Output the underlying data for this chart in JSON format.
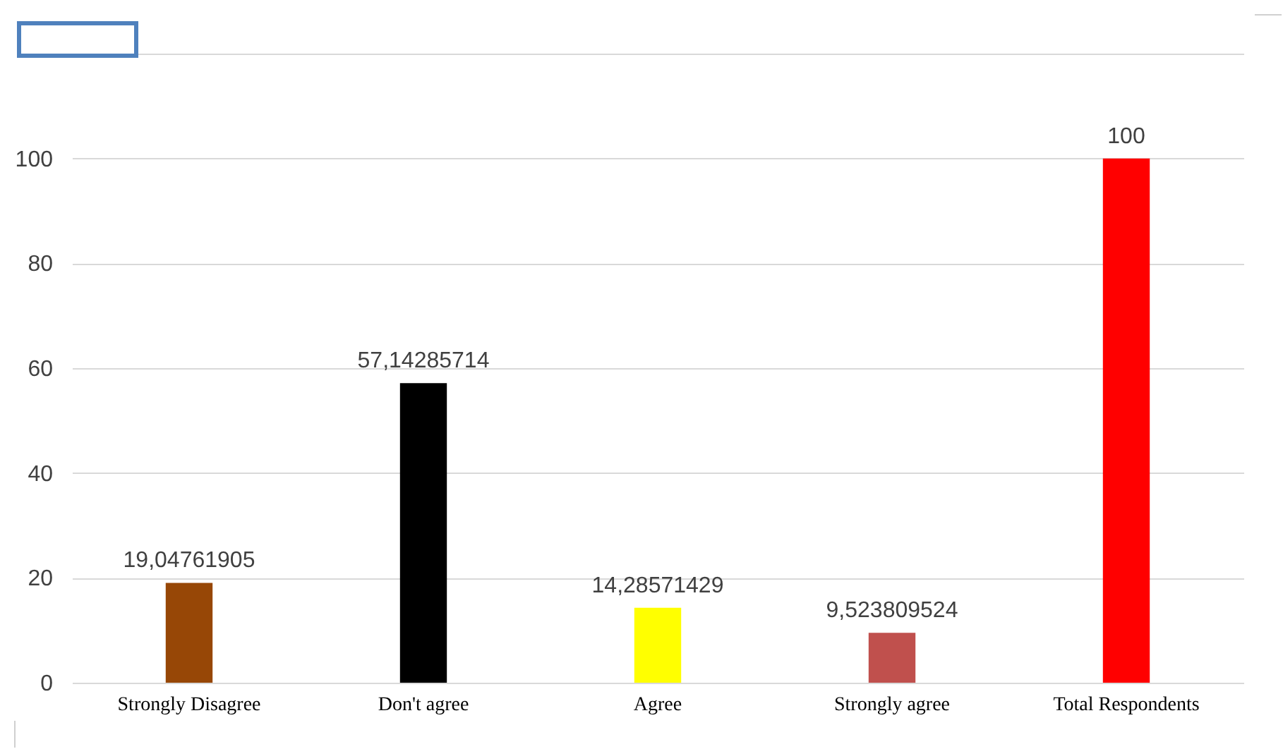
{
  "chart_data": {
    "type": "bar",
    "categories": [
      "Strongly Disagree",
      "Don't agree",
      "Agree",
      "Strongly agree",
      "Total Respondents"
    ],
    "values": [
      19.04761905,
      57.14285714,
      14.28571429,
      9.523809524,
      100
    ],
    "colors": [
      "#974706",
      "#000000",
      "#ffff00",
      "#c0504d",
      "#ff0000"
    ],
    "value_labels": [
      "19,04761905",
      "57,14285714",
      "14,28571429",
      "9,523809524",
      "100"
    ],
    "ylim": [
      0,
      120
    ],
    "yticks": [
      0,
      20,
      40,
      60,
      80,
      100,
      {
        "value": 120,
        "label": null
      }
    ],
    "grid": "y"
  }
}
